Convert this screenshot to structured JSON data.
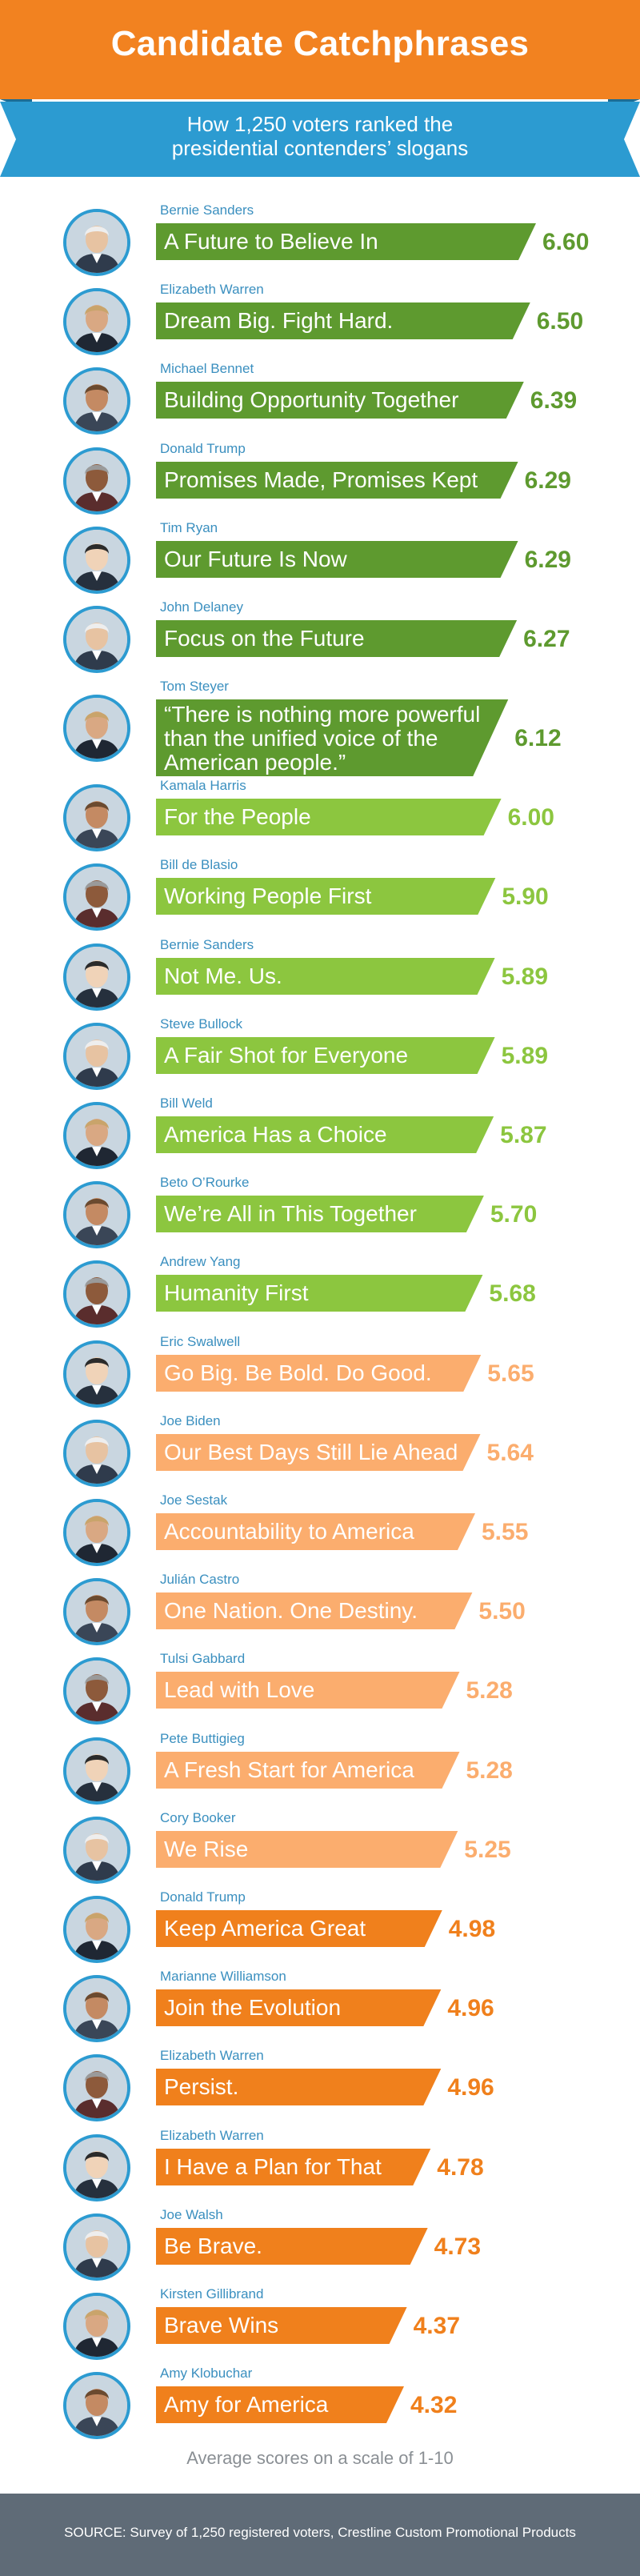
{
  "title": "Candidate Catchphrases",
  "subtitle": "How 1,250 voters ranked the\npresidential contenders’ slogans",
  "footnote": "Average scores on a scale of 1-10",
  "source": "SOURCE: Survey of 1,250 registered voters, Crestline Custom Promotional Products",
  "colors": {
    "header": "#f28220",
    "ribbon": "#2c9bd1",
    "ribbon_fold": "#1c6d95",
    "dark_green": "#5e9a2f",
    "light_green": "#8cc63f",
    "peach": "#fbad6e",
    "orange": "#f0801c",
    "candidate_text": "#3a8fbf",
    "source_bar": "#5f6b77"
  },
  "chart_data": {
    "type": "bar",
    "orientation": "horizontal",
    "title": "Candidate Catchphrases",
    "subtitle": "How 1,250 voters ranked the presidential contenders’ slogans",
    "value_scale": "Average scores on a scale of 1-10",
    "rows": [
      {
        "candidate": "Bernie Sanders",
        "slogan": "A Future to Believe In",
        "score": "6.60",
        "value": 6.6,
        "color": "#5e9a2f"
      },
      {
        "candidate": "Elizabeth Warren",
        "slogan": "Dream Big. Fight Hard.",
        "score": "6.50",
        "value": 6.5,
        "color": "#5e9a2f"
      },
      {
        "candidate": "Michael Bennet",
        "slogan": "Building Opportunity Together",
        "score": "6.39",
        "value": 6.39,
        "color": "#5e9a2f"
      },
      {
        "candidate": "Donald Trump",
        "slogan": "Promises Made, Promises Kept",
        "score": "6.29",
        "value": 6.29,
        "color": "#5e9a2f"
      },
      {
        "candidate": "Tim Ryan",
        "slogan": "Our Future Is Now",
        "score": "6.29",
        "value": 6.29,
        "color": "#5e9a2f"
      },
      {
        "candidate": "John Delaney",
        "slogan": "Focus on the Future",
        "score": "6.27",
        "value": 6.27,
        "color": "#5e9a2f"
      },
      {
        "candidate": "Tom Steyer",
        "slogan": "“There is nothing more powerful than the unified voice of the American people.”",
        "score": "6.12",
        "value": 6.12,
        "color": "#5e9a2f"
      },
      {
        "candidate": "Kamala Harris",
        "slogan": "For the People",
        "score": "6.00",
        "value": 6.0,
        "color": "#8cc63f"
      },
      {
        "candidate": "Bill de Blasio",
        "slogan": "Working People First",
        "score": "5.90",
        "value": 5.9,
        "color": "#8cc63f"
      },
      {
        "candidate": "Bernie Sanders",
        "slogan": "Not Me. Us.",
        "score": "5.89",
        "value": 5.89,
        "color": "#8cc63f"
      },
      {
        "candidate": "Steve Bullock",
        "slogan": "A Fair Shot for Everyone",
        "score": "5.89",
        "value": 5.89,
        "color": "#8cc63f"
      },
      {
        "candidate": "Bill Weld",
        "slogan": "America Has a Choice",
        "score": "5.87",
        "value": 5.87,
        "color": "#8cc63f"
      },
      {
        "candidate": "Beto O’Rourke",
        "slogan": "We’re All in This Together",
        "score": "5.70",
        "value": 5.7,
        "color": "#8cc63f"
      },
      {
        "candidate": "Andrew Yang",
        "slogan": "Humanity First",
        "score": "5.68",
        "value": 5.68,
        "color": "#8cc63f"
      },
      {
        "candidate": "Eric Swalwell",
        "slogan": "Go Big. Be Bold. Do Good.",
        "score": "5.65",
        "value": 5.65,
        "color": "#fbad6e"
      },
      {
        "candidate": "Joe Biden",
        "slogan": "Our Best Days Still Lie Ahead",
        "score": "5.64",
        "value": 5.64,
        "color": "#fbad6e"
      },
      {
        "candidate": "Joe Sestak",
        "slogan": "Accountability to America",
        "score": "5.55",
        "value": 5.55,
        "color": "#fbad6e"
      },
      {
        "candidate": "Julián Castro",
        "slogan": "One Nation. One Destiny.",
        "score": "5.50",
        "value": 5.5,
        "color": "#fbad6e"
      },
      {
        "candidate": "Tulsi Gabbard",
        "slogan": "Lead with Love",
        "score": "5.28",
        "value": 5.28,
        "color": "#fbad6e"
      },
      {
        "candidate": "Pete Buttigieg",
        "slogan": "A Fresh Start for America",
        "score": "5.28",
        "value": 5.28,
        "color": "#fbad6e"
      },
      {
        "candidate": "Cory Booker",
        "slogan": "We Rise",
        "score": "5.25",
        "value": 5.25,
        "color": "#fbad6e"
      },
      {
        "candidate": "Donald Trump",
        "slogan": "Keep America Great",
        "score": "4.98",
        "value": 4.98,
        "color": "#f0801c"
      },
      {
        "candidate": "Marianne Williamson",
        "slogan": "Join the Evolution",
        "score": "4.96",
        "value": 4.96,
        "color": "#f0801c"
      },
      {
        "candidate": "Elizabeth Warren",
        "slogan": "Persist.",
        "score": "4.96",
        "value": 4.96,
        "color": "#f0801c"
      },
      {
        "candidate": "Elizabeth Warren",
        "slogan": "I Have a Plan for That",
        "score": "4.78",
        "value": 4.78,
        "color": "#f0801c"
      },
      {
        "candidate": "Joe Walsh",
        "slogan": "Be Brave.",
        "score": "4.73",
        "value": 4.73,
        "color": "#f0801c"
      },
      {
        "candidate": "Kirsten Gillibrand",
        "slogan": "Brave Wins",
        "score": "4.37",
        "value": 4.37,
        "color": "#f0801c"
      },
      {
        "candidate": "Amy Klobuchar",
        "slogan": "Amy for America",
        "score": "4.32",
        "value": 4.32,
        "color": "#f0801c"
      }
    ]
  }
}
